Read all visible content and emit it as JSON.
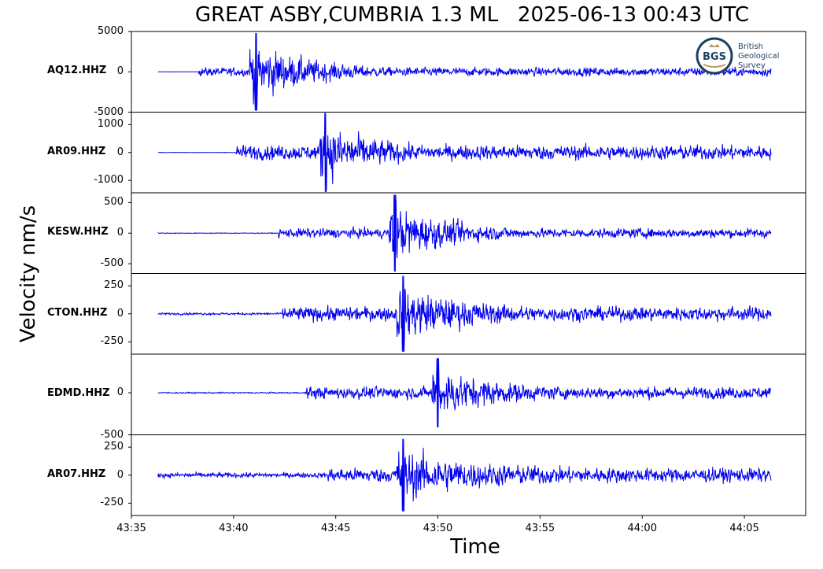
{
  "title": "GREAT ASBY,CUMBRIA 1.3 ML   2025-06-13 00:43 UTC",
  "logo": {
    "badge": "BGS",
    "line1": "British",
    "line2": "Geological",
    "line3": "Survey"
  },
  "colors": {
    "trace": "#0000ee",
    "axes": "#000000",
    "logo_ring": "#1f3f5b",
    "logo_gold": "#b89b5e"
  },
  "chart_data": {
    "type": "line",
    "xlabel": "Time",
    "ylabel": "Velocity nm/s",
    "x_range": [
      "43:35",
      "44:08"
    ],
    "x_ticks": [
      "43:35",
      "43:40",
      "43:45",
      "43:50",
      "43:55",
      "44:00",
      "44:05"
    ],
    "trace_start": "43:36.3",
    "trace_end": "44:06.3",
    "panels": [
      {
        "station": "AQ12.HHZ",
        "ylim": [
          -5000,
          5000
        ],
        "yticks": [
          {
            "v": 5000,
            "t": "5000"
          },
          {
            "v": 0,
            "t": "0"
          },
          {
            "v": -5000,
            "t": "-5000"
          }
        ],
        "onset_p": "43:38.3",
        "onset_s": "43:40.8",
        "peak": 4900,
        "noise": 12,
        "s_amp": 1500,
        "tail": 140
      },
      {
        "station": "AR09.HHZ",
        "ylim": [
          -1450,
          1450
        ],
        "yticks": [
          {
            "v": 1000,
            "t": "1000"
          },
          {
            "v": 0,
            "t": "0"
          },
          {
            "v": -1000,
            "t": "-1000"
          }
        ],
        "onset_p": "43:40.1",
        "onset_s": "43:44.2",
        "peak": 1450,
        "noise": 8,
        "s_amp": 750,
        "tail": 60
      },
      {
        "station": "KESW.HHZ",
        "ylim": [
          -660,
          660
        ],
        "yticks": [
          {
            "v": 500,
            "t": "500"
          },
          {
            "v": 0,
            "t": "0"
          },
          {
            "v": -500,
            "t": "-500"
          }
        ],
        "onset_p": "43:42.2",
        "onset_s": "43:47.6",
        "peak": 640,
        "noise": 6,
        "s_amp": 220,
        "tail": 25
      },
      {
        "station": "CTON.HHZ",
        "ylim": [
          -360,
          360
        ],
        "yticks": [
          {
            "v": 250,
            "t": "250"
          },
          {
            "v": 0,
            "t": "0"
          },
          {
            "v": -250,
            "t": "-250"
          }
        ],
        "onset_p": "43:42.4",
        "onset_s": "43:48.0",
        "peak": 345,
        "noise": 10,
        "s_amp": 180,
        "tail": 40
      },
      {
        "station": "EDMD.HHZ",
        "ylim": [
          -500,
          460
        ],
        "yticks": [
          {
            "v": 0,
            "t": "0"
          },
          {
            "v": -500,
            "t": "-500"
          }
        ],
        "onset_p": "43:43.5",
        "onset_s": "43:49.7",
        "peak": 420,
        "noise": 8,
        "s_amp": 200,
        "tail": 35
      },
      {
        "station": "AR07.HHZ",
        "ylim": [
          -360,
          360
        ],
        "yticks": [
          {
            "v": 250,
            "t": "250"
          },
          {
            "v": 0,
            "t": "0"
          },
          {
            "v": -250,
            "t": "-250"
          }
        ],
        "onset_p": "43:44.6",
        "onset_s": "43:48.0",
        "peak": 330,
        "noise": 22,
        "s_amp": 180,
        "tail": 60
      }
    ]
  }
}
